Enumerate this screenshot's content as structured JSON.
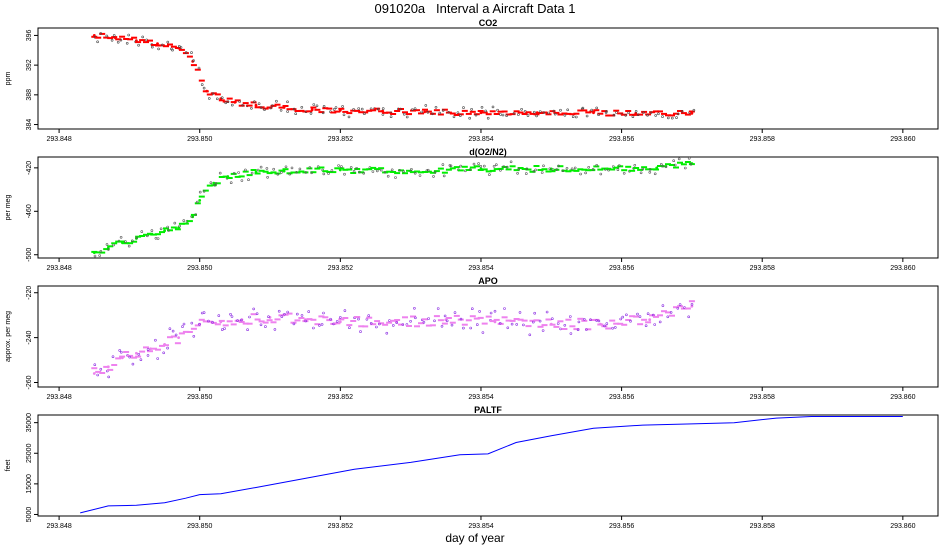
{
  "title": "091020a   Interval a Aircraft Data 1",
  "xlabel": "day of year",
  "colors": {
    "co2": "#ff0000",
    "o2n2": "#00ee00",
    "apo": "#ee82ee",
    "paltf": "#0000ff"
  },
  "chart_data": [
    {
      "type": "scatter",
      "title": "CO2",
      "ylabel": "ppm",
      "xlim": [
        293.8477,
        293.8605
      ],
      "ylim": [
        383.4,
        397.0
      ],
      "x_ticks": [
        "293.848",
        "293.850",
        "293.852",
        "293.854",
        "293.856",
        "293.858",
        "293.860"
      ],
      "y_ticks": [
        "384",
        "388",
        "392",
        "396"
      ],
      "series": [
        {
          "x": [
            293.8485,
            293.8488,
            293.8491,
            293.8494,
            293.8497,
            293.8499,
            293.8501,
            293.8503,
            293.8505,
            293.8508,
            293.8512,
            293.8516,
            293.852,
            293.8526,
            293.8532,
            293.854,
            293.8548,
            293.8556,
            293.8562,
            293.857
          ],
          "y": [
            396.0,
            395.7,
            395.3,
            394.9,
            394.3,
            392.5,
            388.5,
            387.5,
            387.0,
            386.6,
            386.3,
            386.0,
            385.9,
            385.8,
            385.7,
            385.6,
            385.6,
            385.6,
            385.5,
            385.5
          ]
        }
      ]
    },
    {
      "type": "scatter",
      "title": "d(O2/N2)",
      "ylabel": "per meg",
      "xlim": [
        293.8477,
        293.8605
      ],
      "ylim": [
        -503,
        -410
      ],
      "x_ticks": [
        "293.848",
        "293.850",
        "293.852",
        "293.854",
        "293.856",
        "293.858",
        "293.860"
      ],
      "y_ticks": [
        "-500",
        "-460",
        "-420"
      ],
      "series": [
        {
          "x": [
            293.8485,
            293.8487,
            293.8489,
            293.8491,
            293.8493,
            293.8495,
            293.8497,
            293.8499,
            293.85,
            293.8502,
            293.8504,
            293.8508,
            293.8512,
            293.852,
            293.853,
            293.854,
            293.855,
            293.8558,
            293.8565,
            293.857
          ],
          "y": [
            -498,
            -494,
            -489,
            -485,
            -481,
            -478,
            -475,
            -465,
            -450,
            -434,
            -428,
            -424,
            -423,
            -422,
            -423,
            -421,
            -421,
            -421,
            -420,
            -416
          ]
        }
      ]
    },
    {
      "type": "scatter",
      "title": "APO",
      "ylabel": "approx. per meg",
      "xlim": [
        293.8477,
        293.8605
      ],
      "ylim": [
        -262,
        -217
      ],
      "x_ticks": [
        "293.848",
        "293.850",
        "293.852",
        "293.854",
        "293.856",
        "293.858",
        "293.860"
      ],
      "y_ticks": [
        "-260",
        "-240",
        "-220"
      ],
      "series": [
        {
          "x": [
            293.8485,
            293.8487,
            293.8489,
            293.8491,
            293.8493,
            293.8495,
            293.8497,
            293.85,
            293.8503,
            293.8506,
            293.851,
            293.8515,
            293.852,
            293.8528,
            293.8535,
            293.8542,
            293.855,
            293.8557,
            293.8564,
            293.857
          ],
          "y": [
            -256,
            -253,
            -249,
            -247,
            -245,
            -243,
            -240,
            -234,
            -233,
            -232,
            -231,
            -232,
            -233,
            -233,
            -232,
            -233,
            -234,
            -234,
            -232,
            -226
          ]
        }
      ]
    },
    {
      "type": "line",
      "title": "PALTF",
      "ylabel": "feet",
      "xlim": [
        293.8477,
        293.8605
      ],
      "ylim": [
        4500,
        37500
      ],
      "x_ticks": [
        "293.848",
        "293.850",
        "293.852",
        "293.854",
        "293.856",
        "293.858",
        "293.860"
      ],
      "y_ticks": [
        "5000",
        "15000",
        "25000",
        "35000"
      ],
      "series": [
        {
          "x": [
            293.8483,
            293.8487,
            293.8491,
            293.8495,
            293.8498,
            293.85,
            293.8503,
            293.8508,
            293.8515,
            293.8522,
            293.853,
            293.8537,
            293.8541,
            293.8545,
            293.855,
            293.8556,
            293.8563,
            293.857,
            293.8576,
            293.8582,
            293.8587,
            293.8595,
            293.86
          ],
          "y": [
            5500,
            7800,
            8000,
            8800,
            10300,
            11500,
            11800,
            13800,
            16800,
            19800,
            22000,
            24500,
            24800,
            28500,
            30700,
            33200,
            34200,
            34600,
            35000,
            36500,
            37000,
            37000,
            37000
          ]
        }
      ]
    }
  ]
}
